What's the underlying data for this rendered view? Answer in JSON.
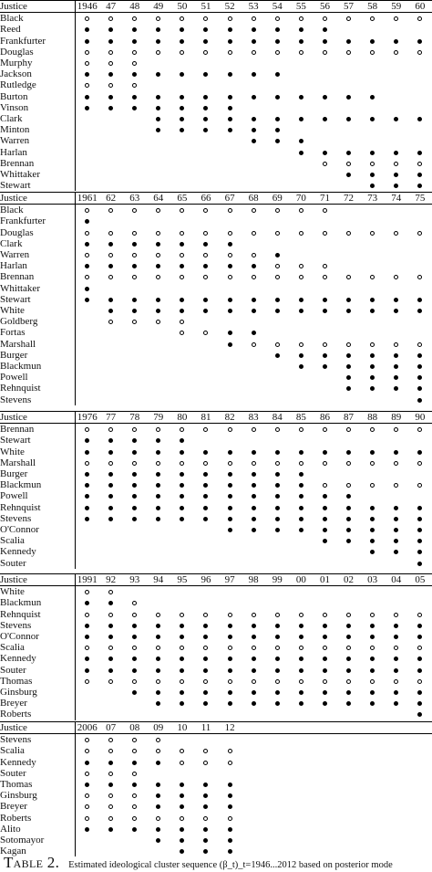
{
  "blocks": [
    {
      "years": [
        "1946",
        "47",
        "48",
        "49",
        "50",
        "51",
        "52",
        "53",
        "54",
        "55",
        "56",
        "57",
        "58",
        "59",
        "60"
      ],
      "rows": [
        {
          "justice": "Black",
          "marks": "ooooooooooooooo"
        },
        {
          "justice": "Reed",
          "marks": "fffffffffff...."
        },
        {
          "justice": "Frankfurter",
          "marks": "fffffffffffffff"
        },
        {
          "justice": "Douglas",
          "marks": "ooooooooooooooo"
        },
        {
          "justice": "Murphy",
          "marks": "ooo............"
        },
        {
          "justice": "Jackson",
          "marks": "fffffffff......"
        },
        {
          "justice": "Rutledge",
          "marks": "ooo............"
        },
        {
          "justice": "Burton",
          "marks": "fffffffffffff.."
        },
        {
          "justice": "Vinson",
          "marks": "fffffff........"
        },
        {
          "justice": "Clark",
          "marks": "...ffffffffffff"
        },
        {
          "justice": "Minton",
          "marks": "...ffffff......"
        },
        {
          "justice": "Warren",
          "marks": ".......fff....."
        },
        {
          "justice": "Harlan",
          "marks": ".........ffffff"
        },
        {
          "justice": "Brennan",
          "marks": "..........ooooo"
        },
        {
          "justice": "Whittaker",
          "marks": "...........ffff"
        },
        {
          "justice": "Stewart",
          "marks": "............fff"
        }
      ]
    },
    {
      "years": [
        "1961",
        "62",
        "63",
        "64",
        "65",
        "66",
        "67",
        "68",
        "69",
        "70",
        "71",
        "72",
        "73",
        "74",
        "75"
      ],
      "rows": [
        {
          "justice": "Black",
          "marks": "ooooooooooo...."
        },
        {
          "justice": "Frankfurter",
          "marks": "f.............."
        },
        {
          "justice": "Douglas",
          "marks": "ooooooooooooooo"
        },
        {
          "justice": "Clark",
          "marks": "fffffff........"
        },
        {
          "justice": "Warren",
          "marks": "oooooooof......"
        },
        {
          "justice": "Harlan",
          "marks": "ffffffffooo...."
        },
        {
          "justice": "Brennan",
          "marks": "ooooooooooooooo"
        },
        {
          "justice": "Whittaker",
          "marks": "f.............."
        },
        {
          "justice": "Stewart",
          "marks": "fffffffffffffff"
        },
        {
          "justice": "White",
          "marks": ".ffffffffffffff"
        },
        {
          "justice": "Goldberg",
          "marks": ".oooo.........."
        },
        {
          "justice": "Fortas",
          "marks": "....ooff......."
        },
        {
          "justice": "Marshall",
          "marks": "......foooooooo"
        },
        {
          "justice": "Burger",
          "marks": "........fffffff"
        },
        {
          "justice": "Blackmun",
          "marks": ".........ffffff"
        },
        {
          "justice": "Powell",
          "marks": "...........ffff"
        },
        {
          "justice": "Rehnquist",
          "marks": "...........ffff"
        },
        {
          "justice": "Stevens",
          "marks": "..............f"
        }
      ]
    },
    {
      "years": [
        "1976",
        "77",
        "78",
        "79",
        "80",
        "81",
        "82",
        "83",
        "84",
        "85",
        "86",
        "87",
        "88",
        "89",
        "90"
      ],
      "rows": [
        {
          "justice": "Brennan",
          "marks": "ooooooooooooooo"
        },
        {
          "justice": "Stewart",
          "marks": "fffff.........."
        },
        {
          "justice": "White",
          "marks": "fffffffffffffff"
        },
        {
          "justice": "Marshall",
          "marks": "ooooooooooooooo"
        },
        {
          "justice": "Burger",
          "marks": "ffffffffff....."
        },
        {
          "justice": "Blackmun",
          "marks": "ffffffffffooooo"
        },
        {
          "justice": "Powell",
          "marks": "ffffffffffff..."
        },
        {
          "justice": "Rehnquist",
          "marks": "fffffffffffffff"
        },
        {
          "justice": "Stevens",
          "marks": "fffffffffffffff"
        },
        {
          "justice": "O'Connor",
          "marks": "......fffffffff"
        },
        {
          "justice": "Scalia",
          "marks": "..........fffff"
        },
        {
          "justice": "Kennedy",
          "marks": "............fff"
        },
        {
          "justice": "Souter",
          "marks": "..............f"
        }
      ]
    },
    {
      "years": [
        "1991",
        "92",
        "93",
        "94",
        "95",
        "96",
        "97",
        "98",
        "99",
        "00",
        "01",
        "02",
        "03",
        "04",
        "05"
      ],
      "rows": [
        {
          "justice": "White",
          "marks": "oo............."
        },
        {
          "justice": "Blackmun",
          "marks": "ffo............"
        },
        {
          "justice": "Rehnquist",
          "marks": "ooooooooooooooo"
        },
        {
          "justice": "Stevens",
          "marks": "fffffffffffffff"
        },
        {
          "justice": "O'Connor",
          "marks": "fffffffffffffff"
        },
        {
          "justice": "Scalia",
          "marks": "ooooooooooooooo"
        },
        {
          "justice": "Kennedy",
          "marks": "fffffffffffffff"
        },
        {
          "justice": "Souter",
          "marks": "fffffffffffffff"
        },
        {
          "justice": "Thomas",
          "marks": "ooooooooooooooo"
        },
        {
          "justice": "Ginsburg",
          "marks": "..fffffffffffff"
        },
        {
          "justice": "Breyer",
          "marks": "...ffffffffffff"
        },
        {
          "justice": "Roberts",
          "marks": "..............f"
        }
      ]
    },
    {
      "years": [
        "2006",
        "07",
        "08",
        "09",
        "10",
        "11",
        "12"
      ],
      "rows": [
        {
          "justice": "Stevens",
          "marks": "oooo..."
        },
        {
          "justice": "Scalia",
          "marks": "ooooooo"
        },
        {
          "justice": "Kennedy",
          "marks": "ffffooo"
        },
        {
          "justice": "Souter",
          "marks": "ooo...."
        },
        {
          "justice": "Thomas",
          "marks": "fffffff"
        },
        {
          "justice": "Ginsburg",
          "marks": "oooffff"
        },
        {
          "justice": "Breyer",
          "marks": "oooffff"
        },
        {
          "justice": "Roberts",
          "marks": "ooooooo"
        },
        {
          "justice": "Alito",
          "marks": "fffffff"
        },
        {
          "justice": "Sotomayor",
          "marks": "...ffff"
        },
        {
          "justice": "Kagan",
          "marks": "....fff"
        }
      ]
    }
  ],
  "header_label": "Justice",
  "caption": {
    "label": "Table 2.",
    "text": "Estimated ideological cluster sequence (β_t)_t=1946...2012 based on posterior mode"
  }
}
